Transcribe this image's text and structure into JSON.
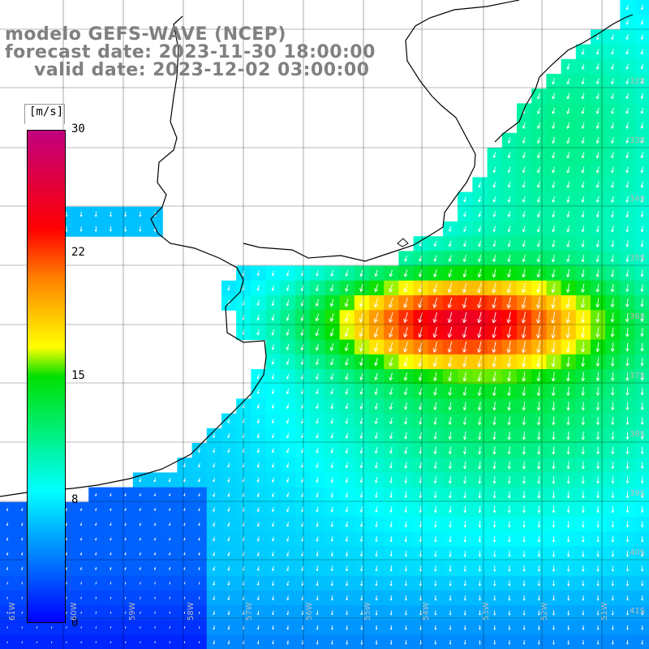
{
  "title": {
    "model": "modelo GEFS-WAVE (NCEP)",
    "forecast": "forecast date: 2023-11-30 18:00:00",
    "valid": "valid date: 2023-12-02 03:00:00"
  },
  "colorbar": {
    "unit": "[m/s]",
    "ticks": [
      "30",
      "22",
      "15",
      "8",
      "0"
    ],
    "range": [
      0,
      30
    ],
    "colors": [
      "#0000ff",
      "#00ffff",
      "#00e000",
      "#ffff00",
      "#ff8000",
      "#ff0000",
      "#c0007f"
    ]
  },
  "lat_labels": [
    "32S",
    "33S",
    "34S",
    "35S",
    "36S",
    "37S",
    "38S",
    "39S",
    "40S",
    "41S"
  ],
  "lon_labels": [
    "61W",
    "60W",
    "59W",
    "58W",
    "57W",
    "56W",
    "55W",
    "54W",
    "53W",
    "52W",
    "51W"
  ],
  "colors": {
    "land": "#ffffff",
    "coast": "#000000",
    "grid": "#000000",
    "arrow": "#ffffff",
    "title": "#808080"
  }
}
